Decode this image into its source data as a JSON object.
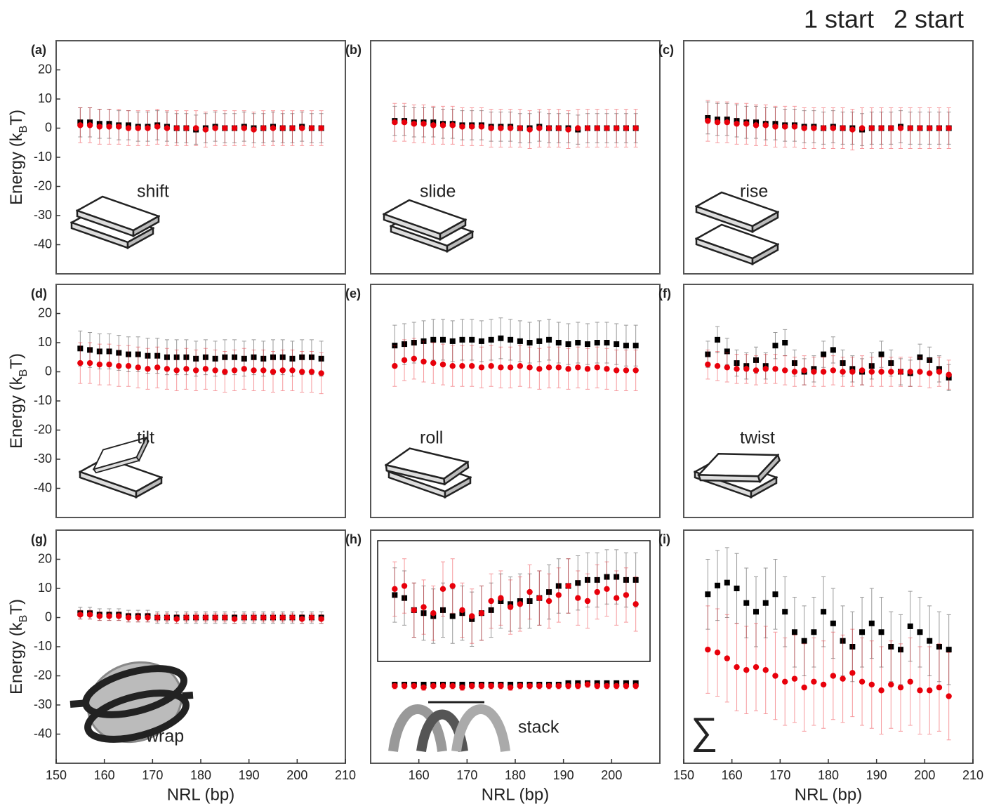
{
  "legend": [
    {
      "name": "1 start",
      "color": "#000000"
    },
    {
      "name": "2 start",
      "color": "#e8000b"
    }
  ],
  "chart_data": [
    {
      "type": "scatter",
      "panel": "(a)",
      "annotation": "shift",
      "x": [
        155,
        157,
        159,
        161,
        163,
        165,
        167,
        169,
        171,
        173,
        175,
        177,
        179,
        181,
        183,
        185,
        187,
        189,
        191,
        193,
        195,
        197,
        199,
        201,
        203,
        205
      ],
      "xlim": [
        150,
        210
      ],
      "ylim": [
        -50,
        30
      ],
      "yticks": [
        20,
        10,
        0,
        -10,
        -20,
        -30,
        -40
      ],
      "ylabel": [
        "Energy (k",
        "B",
        "T)"
      ],
      "series": [
        {
          "color": "#000000",
          "marker": "square",
          "error": 5,
          "values": [
            2,
            2,
            1.5,
            1.5,
            1,
            1,
            0.5,
            0.5,
            1,
            0.5,
            0,
            0,
            -0.5,
            0,
            0.5,
            0,
            0,
            0.5,
            0,
            0,
            0.5,
            0,
            0,
            0.5,
            0,
            0
          ]
        },
        {
          "color": "#e8000b",
          "marker": "circle",
          "error": 6,
          "values": [
            1,
            1,
            0.5,
            0.5,
            0.5,
            0,
            0,
            0,
            0.5,
            0,
            0,
            0,
            0,
            -0.5,
            0,
            0,
            0,
            0,
            -0.5,
            0,
            0,
            0,
            0,
            0,
            0,
            0
          ]
        }
      ]
    },
    {
      "type": "scatter",
      "panel": "(b)",
      "annotation": "slide",
      "x": [
        155,
        157,
        159,
        161,
        163,
        165,
        167,
        169,
        171,
        173,
        175,
        177,
        179,
        181,
        183,
        185,
        187,
        189,
        191,
        193,
        195,
        197,
        199,
        201,
        203,
        205
      ],
      "xlim": [
        150,
        210
      ],
      "ylim": [
        -50,
        30
      ],
      "series": [
        {
          "color": "#000000",
          "marker": "square",
          "error": 5,
          "values": [
            2.5,
            2.5,
            2,
            2,
            2,
            1.5,
            1.5,
            1,
            1,
            1,
            0.5,
            0.5,
            0.5,
            0,
            0,
            0.5,
            0,
            0,
            0,
            -0.5,
            0,
            0,
            0,
            0,
            0,
            0
          ]
        },
        {
          "color": "#e8000b",
          "marker": "circle",
          "error": 6.5,
          "values": [
            2,
            2,
            1.5,
            1.5,
            1,
            1,
            1,
            0.5,
            0.5,
            0.5,
            0,
            0,
            0,
            0,
            -0.5,
            0,
            0,
            0,
            -0.5,
            0,
            0,
            0,
            0,
            0,
            0,
            0
          ]
        }
      ]
    },
    {
      "type": "scatter",
      "panel": "(c)",
      "annotation": "rise",
      "x": [
        155,
        157,
        159,
        161,
        163,
        165,
        167,
        169,
        171,
        173,
        175,
        177,
        179,
        181,
        183,
        185,
        187,
        189,
        191,
        193,
        195,
        197,
        199,
        201,
        203,
        205
      ],
      "xlim": [
        150,
        210
      ],
      "ylim": [
        -50,
        30
      ],
      "series": [
        {
          "color": "#000000",
          "marker": "square",
          "error": 5.5,
          "values": [
            3.5,
            3,
            3,
            2.5,
            2,
            2,
            1.5,
            1.5,
            1,
            1,
            0.5,
            0.5,
            0,
            0.5,
            0,
            0,
            -0.5,
            0,
            0,
            0,
            0.5,
            0,
            0,
            0,
            0,
            0
          ]
        },
        {
          "color": "#e8000b",
          "marker": "circle",
          "error": 7,
          "values": [
            2.5,
            2,
            2,
            1.5,
            1.5,
            1,
            1,
            0.5,
            0.5,
            0.5,
            0,
            0,
            0,
            0,
            0,
            -0.5,
            0,
            0,
            0,
            0,
            0,
            0,
            0,
            0,
            0,
            0
          ]
        }
      ]
    },
    {
      "type": "scatter",
      "panel": "(d)",
      "annotation": "tilt",
      "x": [
        155,
        157,
        159,
        161,
        163,
        165,
        167,
        169,
        171,
        173,
        175,
        177,
        179,
        181,
        183,
        185,
        187,
        189,
        191,
        193,
        195,
        197,
        199,
        201,
        203,
        205
      ],
      "xlim": [
        150,
        210
      ],
      "ylim": [
        -50,
        30
      ],
      "yticks": [
        20,
        10,
        0,
        -10,
        -20,
        -30,
        -40
      ],
      "ylabel": [
        "Energy (k",
        "B",
        "T)"
      ],
      "series": [
        {
          "color": "#000000",
          "marker": "square",
          "error": 6,
          "values": [
            8,
            7.5,
            7,
            7,
            6.5,
            6,
            6,
            5.5,
            5.5,
            5,
            5,
            5,
            4.5,
            5,
            4.5,
            5,
            5,
            4.5,
            5,
            4.5,
            5,
            5,
            4.5,
            5,
            5,
            4.5
          ]
        },
        {
          "color": "#e8000b",
          "marker": "circle",
          "error": 7,
          "values": [
            3,
            3,
            2.5,
            2.5,
            2,
            2,
            1.5,
            1,
            1.5,
            1,
            0.5,
            1,
            0.5,
            1,
            0.5,
            0,
            0.5,
            1,
            0.5,
            0.5,
            0,
            0.5,
            0.5,
            0,
            0,
            -0.5
          ]
        }
      ]
    },
    {
      "type": "scatter",
      "panel": "(e)",
      "annotation": "roll",
      "x": [
        155,
        157,
        159,
        161,
        163,
        165,
        167,
        169,
        171,
        173,
        175,
        177,
        179,
        181,
        183,
        185,
        187,
        189,
        191,
        193,
        195,
        197,
        199,
        201,
        203,
        205
      ],
      "xlim": [
        150,
        210
      ],
      "ylim": [
        -50,
        30
      ],
      "series": [
        {
          "color": "#000000",
          "marker": "square",
          "error": 7,
          "values": [
            9,
            9.5,
            10,
            10.5,
            11,
            11,
            10.5,
            11,
            11,
            10.5,
            11,
            11.5,
            11,
            10.5,
            10,
            10.5,
            11,
            10,
            9.5,
            10,
            9.5,
            10,
            10,
            9.5,
            9,
            9
          ]
        },
        {
          "color": "#e8000b",
          "marker": "circle",
          "error": 7,
          "values": [
            2,
            4,
            4.5,
            3.5,
            3,
            2.5,
            2,
            2,
            2,
            1.5,
            2,
            1.5,
            1.5,
            2,
            1.5,
            1,
            1.5,
            1.5,
            1,
            1.5,
            1,
            1.5,
            1,
            0.5,
            0.5,
            0.5
          ]
        }
      ]
    },
    {
      "type": "scatter",
      "panel": "(f)",
      "annotation": "twist",
      "x": [
        155,
        157,
        159,
        161,
        163,
        165,
        167,
        169,
        171,
        173,
        175,
        177,
        179,
        181,
        183,
        185,
        187,
        189,
        191,
        193,
        195,
        197,
        199,
        201,
        203,
        205
      ],
      "xlim": [
        150,
        210
      ],
      "ylim": [
        -50,
        30
      ],
      "series": [
        {
          "color": "#000000",
          "marker": "square",
          "error": 4.5,
          "values": [
            6,
            11,
            7,
            3,
            2,
            4,
            2,
            9,
            10,
            3,
            0,
            1,
            6,
            7.5,
            3,
            1,
            0,
            2,
            6,
            3,
            0,
            -0.5,
            5,
            4,
            1,
            -2
          ]
        },
        {
          "color": "#e8000b",
          "marker": "circle",
          "error": 5,
          "values": [
            2.5,
            2,
            1.5,
            1,
            1,
            0.5,
            1,
            1,
            0.5,
            0,
            0.5,
            0,
            0,
            0.5,
            0,
            0,
            0.5,
            0,
            0,
            0,
            0,
            0,
            0,
            -0.5,
            0,
            -1
          ]
        }
      ]
    },
    {
      "type": "scatter",
      "panel": "(g)",
      "annotation": "wrap",
      "x": [
        155,
        157,
        159,
        161,
        163,
        165,
        167,
        169,
        171,
        173,
        175,
        177,
        179,
        181,
        183,
        185,
        187,
        189,
        191,
        193,
        195,
        197,
        199,
        201,
        203,
        205
      ],
      "xlim": [
        150,
        210
      ],
      "ylim": [
        -50,
        30
      ],
      "yticks": [
        20,
        10,
        0,
        -10,
        -20,
        -30,
        -40
      ],
      "ylabel": [
        "Energy (k",
        "B",
        "T)"
      ],
      "xticks": [
        150,
        160,
        170,
        180,
        190,
        200,
        210
      ],
      "xlabel": "NRL (bp)",
      "series": [
        {
          "color": "#000000",
          "marker": "square",
          "error": 2,
          "values": [
            1.5,
            1.5,
            1,
            1,
            1,
            0.5,
            0.5,
            0.5,
            0,
            0,
            0,
            0,
            0,
            0,
            0,
            0,
            0,
            0,
            0,
            0,
            0,
            0,
            0,
            0,
            0,
            0
          ]
        },
        {
          "color": "#e8000b",
          "marker": "circle",
          "error": 1.5,
          "values": [
            1,
            1,
            0.5,
            0.5,
            0.5,
            0,
            0,
            0,
            0,
            0,
            -0.5,
            0,
            0,
            0,
            0,
            0,
            -0.5,
            0,
            0,
            0,
            0,
            0,
            0,
            -0.5,
            0,
            -0.5
          ]
        }
      ]
    },
    {
      "type": "scatter",
      "panel": "(h)",
      "annotation": "stack",
      "x": [
        155,
        157,
        159,
        161,
        163,
        165,
        167,
        169,
        171,
        173,
        175,
        177,
        179,
        181,
        183,
        185,
        187,
        189,
        191,
        193,
        195,
        197,
        199,
        201,
        203,
        205
      ],
      "xlim": [
        150,
        210
      ],
      "ylim": [
        -50,
        30
      ],
      "xticks": [
        160,
        170,
        180,
        190,
        200
      ],
      "xlabel": "NRL (bp)",
      "series": [
        {
          "color": "#000000",
          "marker": "square",
          "error": 0.7,
          "values": [
            -23,
            -23,
            -23,
            -23,
            -23,
            -23,
            -23,
            -23,
            -23,
            -23,
            -23,
            -23,
            -23,
            -23,
            -23,
            -23,
            -23,
            -23,
            -22.5,
            -22.5,
            -22.5,
            -22.5,
            -22.5,
            -22.5,
            -22.5,
            -22.5
          ]
        },
        {
          "color": "#e8000b",
          "marker": "circle",
          "error": 1,
          "values": [
            -23.5,
            -23.5,
            -23.5,
            -24,
            -23.5,
            -23.5,
            -23.5,
            -24,
            -23.5,
            -23.5,
            -23.5,
            -23.5,
            -24,
            -23.5,
            -23.5,
            -23.5,
            -23.5,
            -23.5,
            -23.5,
            -23.5,
            -23,
            -23.5,
            -23.5,
            -23.5,
            -23.5,
            -23.5
          ]
        }
      ],
      "inset": {
        "type": "scatter",
        "ylim": [
          -15,
          25
        ],
        "series": [
          {
            "color": "#000000",
            "marker": "square",
            "error": 9,
            "values": [
              7,
              6,
              2,
              1,
              0,
              2,
              0,
              1,
              -1,
              1,
              2,
              5,
              4,
              5,
              5,
              6,
              8,
              10,
              10,
              11,
              12,
              12,
              13,
              13,
              12,
              12
            ]
          },
          {
            "color": "#e8000b",
            "marker": "circle",
            "error": 9,
            "values": [
              9,
              10,
              2,
              3,
              1,
              9,
              10,
              2,
              0,
              1,
              5,
              6,
              3,
              4,
              8,
              6,
              5,
              7,
              10,
              6,
              5,
              8,
              9,
              6,
              7,
              4
            ]
          }
        ]
      }
    },
    {
      "type": "scatter",
      "panel": "(i)",
      "annotation": "∑",
      "x": [
        155,
        157,
        159,
        161,
        163,
        165,
        167,
        169,
        171,
        173,
        175,
        177,
        179,
        181,
        183,
        185,
        187,
        189,
        191,
        193,
        195,
        197,
        199,
        201,
        203,
        205
      ],
      "xlim": [
        150,
        210
      ],
      "ylim": [
        -50,
        30
      ],
      "xticks": [
        150,
        160,
        170,
        180,
        190,
        200,
        210
      ],
      "xlabel": "NRL (bp)",
      "series": [
        {
          "color": "#000000",
          "marker": "square",
          "error": 12,
          "values": [
            8,
            11,
            12,
            10,
            5,
            2,
            5,
            8,
            2,
            -5,
            -8,
            -5,
            2,
            -2,
            -8,
            -10,
            -5,
            -2,
            -5,
            -10,
            -11,
            -3,
            -5,
            -8,
            -10,
            -11
          ]
        },
        {
          "color": "#e8000b",
          "marker": "circle",
          "error": 15,
          "values": [
            -11,
            -12,
            -14,
            -17,
            -18,
            -17,
            -18,
            -20,
            -22,
            -21,
            -24,
            -22,
            -23,
            -20,
            -21,
            -19,
            -22,
            -23,
            -25,
            -23,
            -24,
            -22,
            -25,
            -25,
            -24,
            -27
          ]
        }
      ]
    }
  ]
}
